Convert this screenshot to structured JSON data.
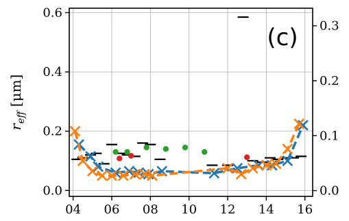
{
  "chart_data": {
    "type": "scatter",
    "panel_label": "(c)",
    "ylabel": "r_eff [μm]",
    "xlabel": "",
    "xlim": [
      3.8,
      16.4
    ],
    "ylim": [
      -0.02,
      0.615
    ],
    "y2lim": [
      -0.0105,
      0.332
    ],
    "x_ticks": [
      "04",
      "06",
      "08",
      "10",
      "12",
      "14",
      "16"
    ],
    "x_tick_values": [
      4,
      6,
      8,
      10,
      12,
      14,
      16
    ],
    "y_ticks": [
      "0.0",
      "0.2",
      "0.4",
      "0.6"
    ],
    "y_tick_values": [
      0.0,
      0.2,
      0.4,
      0.6
    ],
    "y2_ticks": [
      "0.0",
      "0.1",
      "0.2",
      "0.3"
    ],
    "y2_tick_values": [
      0.0,
      0.1,
      0.2,
      0.3
    ],
    "grid": true,
    "colors": {
      "orange": "#ff7f0e",
      "blue": "#1f77b4",
      "green": "#2ca02c",
      "red": "#d62728",
      "black": "#000000"
    },
    "series": [
      {
        "style": "black dash markers",
        "points": [
          [
            4.2,
            0.105
          ],
          [
            4.5,
            0.11
          ],
          [
            4.9,
            0.12
          ],
          [
            5.2,
            0.125
          ],
          [
            5.6,
            0.09
          ],
          [
            6.0,
            0.155
          ],
          [
            6.4,
            0.125
          ],
          [
            6.8,
            0.12
          ],
          [
            7.2,
            0.115
          ],
          [
            7.6,
            0.16
          ],
          [
            8.0,
            0.155
          ],
          [
            8.5,
            0.105
          ],
          [
            11.2,
            0.085
          ],
          [
            12.0,
            0.085
          ],
          [
            12.8,
            0.585
          ],
          [
            13.3,
            0.1
          ],
          [
            13.8,
            0.095
          ],
          [
            14.2,
            0.11
          ],
          [
            14.6,
            0.105
          ],
          [
            15.0,
            0.11
          ],
          [
            15.4,
            0.11
          ],
          [
            15.8,
            0.115
          ]
        ]
      },
      {
        "style": "green dots",
        "points": [
          [
            6.2,
            0.13
          ],
          [
            6.8,
            0.13
          ],
          [
            7.8,
            0.145
          ],
          [
            8.8,
            0.14
          ],
          [
            9.8,
            0.145
          ],
          [
            10.8,
            0.13
          ]
        ]
      },
      {
        "style": "red dots",
        "points": [
          [
            6.4,
            0.108
          ],
          [
            7.0,
            0.117
          ],
          [
            13.0,
            0.112
          ]
        ]
      },
      {
        "style": "blue x markers with dashed line",
        "points": [
          [
            4.3,
            0.155
          ],
          [
            4.9,
            0.115
          ],
          [
            5.3,
            0.08
          ],
          [
            6.2,
            0.06
          ],
          [
            6.9,
            0.065
          ],
          [
            7.4,
            0.06
          ],
          [
            7.9,
            0.055
          ],
          [
            8.6,
            0.065
          ],
          [
            11.3,
            0.058
          ],
          [
            12.5,
            0.075
          ],
          [
            13.6,
            0.085
          ],
          [
            14.3,
            0.085
          ],
          [
            15.1,
            0.1
          ],
          [
            15.9,
            0.22
          ]
        ]
      },
      {
        "style": "orange x markers with dashed line",
        "points": [
          [
            4.1,
            0.2
          ],
          [
            4.5,
            0.1
          ],
          [
            5.0,
            0.065
          ],
          [
            5.5,
            0.05
          ],
          [
            6.0,
            0.05
          ],
          [
            6.6,
            0.05
          ],
          [
            7.2,
            0.055
          ],
          [
            7.7,
            0.055
          ],
          [
            8.1,
            0.05
          ],
          [
            12.0,
            0.075
          ],
          [
            12.7,
            0.055
          ],
          [
            13.3,
            0.075
          ],
          [
            14.0,
            0.085
          ],
          [
            14.5,
            0.09
          ],
          [
            15.1,
            0.14
          ],
          [
            15.7,
            0.225
          ]
        ]
      }
    ]
  }
}
